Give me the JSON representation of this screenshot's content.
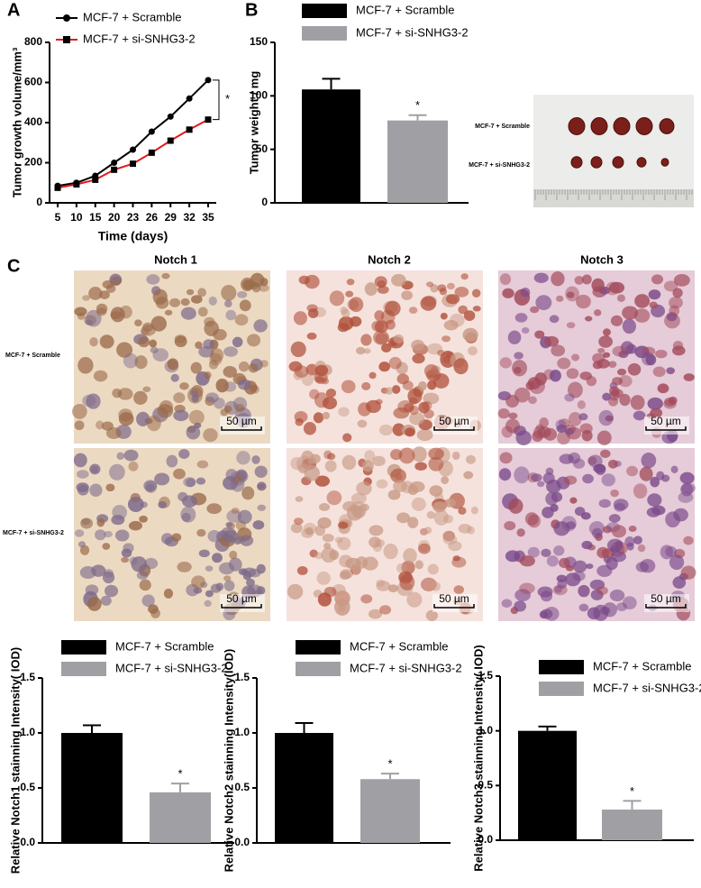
{
  "panel_labels": [
    "A",
    "B",
    "C"
  ],
  "chart_data": [
    {
      "type": "line",
      "categories": [
        "5",
        "10",
        "15",
        "20",
        "23",
        "26",
        "29",
        "32",
        "35"
      ],
      "xlabel": "Time (days)",
      "ylabel": "Tumor growth volume/mm³",
      "ylim": [
        0,
        800
      ],
      "yticks": [
        0,
        200,
        400,
        600,
        800
      ],
      "annotation": "*",
      "series": [
        {
          "name": "MCF-7 + Scramble",
          "color": "#000000",
          "marker": "circle",
          "marker_color": "#000000",
          "values": [
            85,
            100,
            135,
            200,
            265,
            355,
            430,
            520,
            612
          ]
        },
        {
          "name": "MCF-7 + si-SNHG3-2",
          "color": "#e31a1c",
          "marker": "square",
          "marker_color": "#000000",
          "values": [
            75,
            92,
            115,
            165,
            195,
            250,
            310,
            365,
            415
          ]
        }
      ]
    },
    {
      "type": "bar",
      "ylabel": "Tumor weight / mg",
      "ylim": [
        0,
        150
      ],
      "yticks": [
        0,
        50,
        100,
        150
      ],
      "annotation": "*",
      "series": [
        {
          "name": "MCF-7 + Scramble",
          "color": "#000000",
          "values": [
            106
          ],
          "errors": [
            10
          ]
        },
        {
          "name": "MCF-7 + si-SNHG3-2",
          "color": "#a0a0a4",
          "values": [
            77
          ],
          "errors": [
            5
          ]
        }
      ]
    },
    {
      "type": "bar",
      "ylabel": "Relative Notch1 stainning Intensity( IOD)",
      "ylim": [
        0,
        1.5
      ],
      "yticks": [
        {
          "value": 0,
          "label": "0.0"
        },
        0.5,
        {
          "value": 1,
          "label": "1.0"
        },
        1.5
      ],
      "annotation": "*",
      "series": [
        {
          "name": "MCF-7 + Scramble",
          "color": "#000000",
          "values": [
            1.0
          ],
          "errors": [
            0.07
          ]
        },
        {
          "name": "MCF-7 + si-SNHG3-2",
          "color": "#a0a0a4",
          "values": [
            0.46
          ],
          "errors": [
            0.08
          ]
        }
      ]
    },
    {
      "type": "bar",
      "ylabel": "Relative Notch2 stainning Intensity(IOD)",
      "ylim": [
        0,
        1.5
      ],
      "yticks": [
        {
          "value": 0,
          "label": "0.0"
        },
        0.5,
        {
          "value": 1,
          "label": "1.0"
        },
        1.5
      ],
      "annotation": "*",
      "series": [
        {
          "name": "MCF-7 + Scramble",
          "color": "#000000",
          "values": [
            1.0
          ],
          "errors": [
            0.09
          ]
        },
        {
          "name": "MCF-7 + si-SNHG3-2",
          "color": "#a0a0a4",
          "values": [
            0.58
          ],
          "errors": [
            0.05
          ]
        }
      ]
    },
    {
      "type": "bar",
      "ylabel": "Relative Notch3 stainning Intensity( IOD)",
      "ylim": [
        0,
        1.5
      ],
      "yticks": [
        {
          "value": 0,
          "label": "0.0"
        },
        0.5,
        {
          "value": 1,
          "label": "1.0"
        },
        1.5
      ],
      "annotation": "*",
      "series": [
        {
          "name": "MCF-7 + Scramble",
          "color": "#000000",
          "values": [
            1.0
          ],
          "errors": [
            0.04
          ]
        },
        {
          "name": "MCF-7 + si-SNHG3-2",
          "color": "#a0a0a4",
          "values": [
            0.28
          ],
          "errors": [
            0.08
          ]
        }
      ]
    }
  ],
  "tumor_photo": {
    "row_labels": [
      "MCF-7 + Scramble",
      "MCF-7 + si-SNHG3-2"
    ]
  },
  "ihc": {
    "columns": [
      "Notch 1",
      "Notch 2",
      "Notch 3"
    ],
    "rows": [
      "MCF-7 + Scramble",
      "MCF-7 + si-SNHG3-2"
    ],
    "scale_bar": "50 µm"
  }
}
